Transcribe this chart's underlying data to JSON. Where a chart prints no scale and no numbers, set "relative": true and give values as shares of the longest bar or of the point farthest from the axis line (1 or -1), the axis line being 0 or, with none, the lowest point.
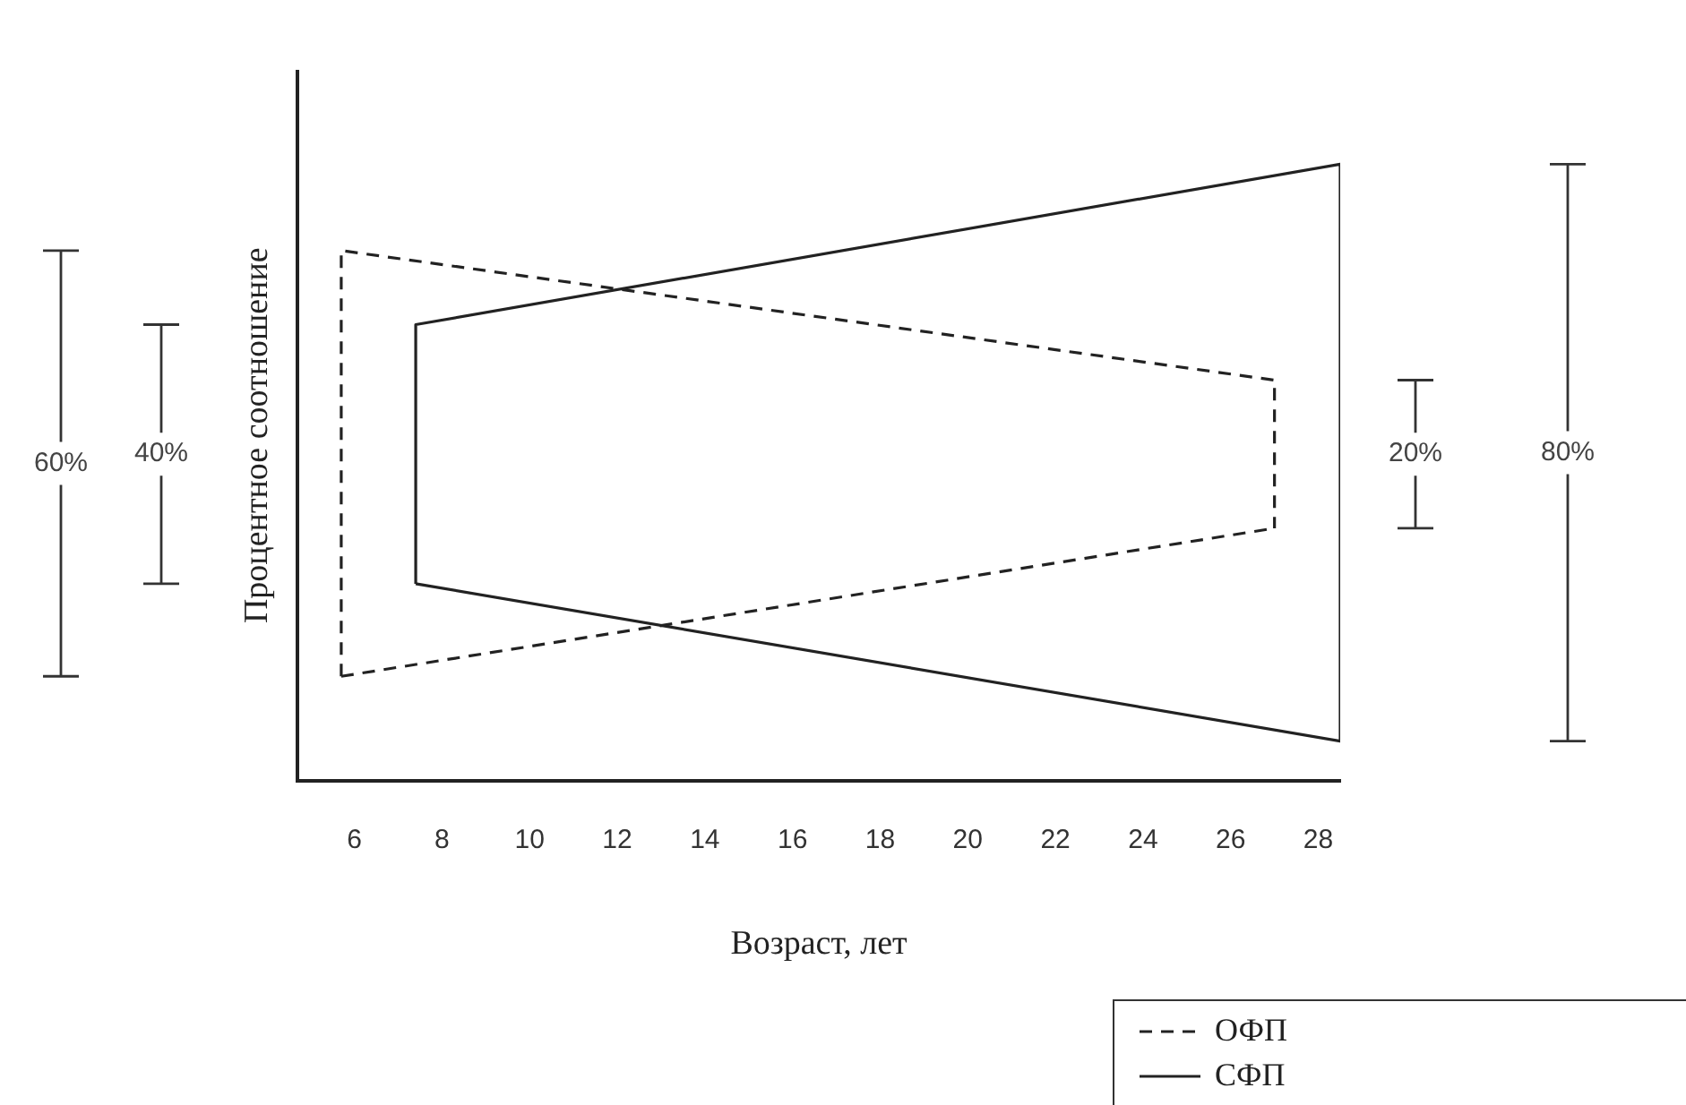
{
  "chart_data": {
    "type": "line",
    "relative": true,
    "xlabel": "Возраст, лет",
    "ylabel": "Процентное соотношение",
    "xlim": [
      4.7,
      28.5
    ],
    "xticks": [
      6,
      8,
      10,
      12,
      14,
      16,
      18,
      20,
      22,
      24,
      26,
      28
    ],
    "series": [
      {
        "name": "ОФП",
        "color": "#222222",
        "line_style": "dashed",
        "x": [
          5.7,
          5.7,
          27,
          27
        ],
        "values": [
          0.17,
          0.86,
          0.65,
          0.41
        ]
      },
      {
        "name": "СФП",
        "color": "#222222",
        "line_style": "solid",
        "x": [
          7.4,
          7.4,
          28.5,
          28.5
        ],
        "values": [
          0.32,
          0.74,
          1,
          0.065
        ]
      },
      {
        "color": "#222222",
        "line_style": "dashed",
        "x": [
          5.7,
          27
        ],
        "values": [
          0.17,
          0.41
        ]
      },
      {
        "color": "#222222",
        "line_style": "solid",
        "x": [
          7.4,
          28.5
        ],
        "values": [
          0.32,
          0.065
        ]
      }
    ],
    "annotations": [
      "60%",
      "40%",
      "20%",
      "80%"
    ],
    "marker": "none",
    "grid": false,
    "legend": "bottom right"
  }
}
